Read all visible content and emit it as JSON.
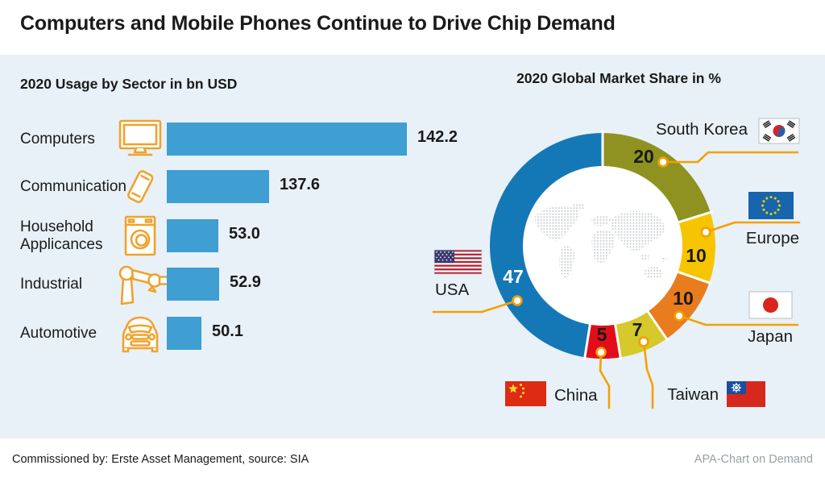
{
  "title": "Computers and Mobile Phones Continue to Drive Chip Demand",
  "footer": {
    "left": "Commissioned by: Erste Asset Management, source: SIA",
    "right": "APA-Chart on Demand"
  },
  "colors": {
    "panel_bg": "#e8f1f8",
    "bar_blue": "#3f9ed2",
    "accent_orange": "#f5a000",
    "map_dot_gray": "#c8cccf"
  },
  "chart_data": [
    {
      "type": "bar",
      "title": "2020 Usage by Sector in bn USD",
      "orientation": "horizontal",
      "categories": [
        "Computers",
        "Communication",
        "Household Applicances",
        "Industrial",
        "Automotive"
      ],
      "category_lines": [
        [
          "Computers"
        ],
        [
          "Communication"
        ],
        [
          "Household",
          "Applicances"
        ],
        [
          "Industrial"
        ],
        [
          "Automotive"
        ]
      ],
      "values": [
        142.2,
        137.6,
        53.0,
        52.9,
        50.1
      ],
      "value_labels": [
        "142.2",
        "137.6",
        "53.0",
        "52.9",
        "50.1"
      ],
      "unit": "bn USD",
      "bar_color": "#3f9ed2",
      "icons": [
        "desktop-monitor",
        "smartphone",
        "washing-machine",
        "robot-arm",
        "car"
      ]
    },
    {
      "type": "pie",
      "title": "2020 Global Market Share in %",
      "unit": "%",
      "start_angle_deg": 0,
      "direction": "clockwise",
      "center_graphic": "dotted-world-map",
      "segments": [
        {
          "label": "South Korea",
          "value": 20,
          "color": "#8f9221",
          "flag": "south-korea"
        },
        {
          "label": "Europe",
          "value": 10,
          "color": "#f7c500",
          "flag": "european-union"
        },
        {
          "label": "Japan",
          "value": 10,
          "color": "#e87c1e",
          "flag": "japan"
        },
        {
          "label": "Taiwan",
          "value": 7,
          "color": "#d5c92b",
          "flag": "taiwan"
        },
        {
          "label": "China",
          "value": 5,
          "color": "#e20d18",
          "flag": "china"
        },
        {
          "label": "USA",
          "value": 47,
          "color": "#1578b6",
          "flag": "usa"
        }
      ]
    }
  ]
}
